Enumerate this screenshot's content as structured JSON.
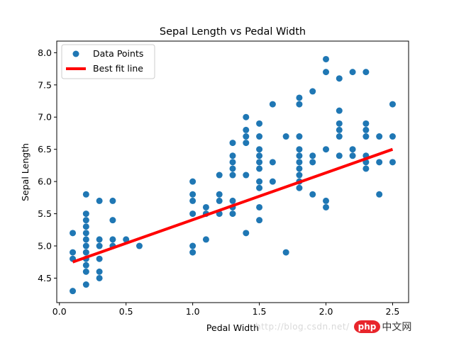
{
  "chart_data": {
    "type": "scatter",
    "title": "Sepal Length vs Pedal Width",
    "xlabel": "Pedal Width",
    "ylabel": "Sepal Length",
    "xlim": [
      -0.02,
      2.62
    ],
    "ylim": [
      4.12,
      8.18
    ],
    "xticks": [
      0.0,
      0.5,
      1.0,
      1.5,
      2.0,
      2.5
    ],
    "xtick_labels": [
      "0.0",
      "0.5",
      "1.0",
      "1.5",
      "2.0",
      "2.5"
    ],
    "yticks": [
      4.5,
      5.0,
      5.5,
      6.0,
      6.5,
      7.0,
      7.5,
      8.0
    ],
    "ytick_labels": [
      "4.5",
      "5.0",
      "5.5",
      "6.0",
      "6.5",
      "7.0",
      "7.5",
      "8.0"
    ],
    "grid": false,
    "legend_position": "top-left",
    "series": [
      {
        "name": "Data Points",
        "kind": "scatter",
        "color": "#1f77b4",
        "points": [
          [
            0.1,
            5.2
          ],
          [
            0.1,
            4.9
          ],
          [
            0.1,
            4.8
          ],
          [
            0.1,
            4.3
          ],
          [
            0.2,
            5.8
          ],
          [
            0.2,
            5.5
          ],
          [
            0.2,
            5.4
          ],
          [
            0.2,
            5.3
          ],
          [
            0.2,
            5.2
          ],
          [
            0.2,
            5.1
          ],
          [
            0.2,
            5.0
          ],
          [
            0.2,
            4.9
          ],
          [
            0.2,
            4.8
          ],
          [
            0.2,
            4.7
          ],
          [
            0.2,
            4.6
          ],
          [
            0.2,
            4.4
          ],
          [
            0.3,
            5.7
          ],
          [
            0.3,
            5.1
          ],
          [
            0.3,
            5.0
          ],
          [
            0.3,
            4.8
          ],
          [
            0.3,
            4.6
          ],
          [
            0.3,
            4.5
          ],
          [
            0.4,
            5.7
          ],
          [
            0.4,
            5.4
          ],
          [
            0.4,
            5.1
          ],
          [
            0.4,
            5.0
          ],
          [
            0.5,
            5.1
          ],
          [
            0.6,
            5.0
          ],
          [
            1.0,
            6.0
          ],
          [
            1.0,
            5.8
          ],
          [
            1.0,
            5.7
          ],
          [
            1.0,
            5.5
          ],
          [
            1.0,
            5.0
          ],
          [
            1.0,
            4.9
          ],
          [
            1.1,
            5.6
          ],
          [
            1.1,
            5.5
          ],
          [
            1.1,
            5.1
          ],
          [
            1.2,
            6.1
          ],
          [
            1.2,
            5.8
          ],
          [
            1.2,
            5.7
          ],
          [
            1.2,
            5.5
          ],
          [
            1.3,
            6.6
          ],
          [
            1.3,
            6.4
          ],
          [
            1.3,
            6.3
          ],
          [
            1.3,
            6.2
          ],
          [
            1.3,
            6.1
          ],
          [
            1.3,
            5.7
          ],
          [
            1.3,
            5.6
          ],
          [
            1.3,
            5.5
          ],
          [
            1.4,
            7.0
          ],
          [
            1.4,
            6.8
          ],
          [
            1.4,
            6.7
          ],
          [
            1.4,
            6.6
          ],
          [
            1.4,
            6.1
          ],
          [
            1.4,
            5.2
          ],
          [
            1.5,
            6.9
          ],
          [
            1.5,
            6.7
          ],
          [
            1.5,
            6.5
          ],
          [
            1.5,
            6.4
          ],
          [
            1.5,
            6.3
          ],
          [
            1.5,
            6.2
          ],
          [
            1.5,
            6.0
          ],
          [
            1.5,
            5.9
          ],
          [
            1.5,
            5.6
          ],
          [
            1.5,
            5.4
          ],
          [
            1.6,
            7.2
          ],
          [
            1.6,
            6.3
          ],
          [
            1.6,
            6.0
          ],
          [
            1.7,
            6.7
          ],
          [
            1.7,
            4.9
          ],
          [
            1.8,
            7.3
          ],
          [
            1.8,
            7.2
          ],
          [
            1.8,
            6.7
          ],
          [
            1.8,
            6.5
          ],
          [
            1.8,
            6.4
          ],
          [
            1.8,
            6.3
          ],
          [
            1.8,
            6.2
          ],
          [
            1.8,
            6.1
          ],
          [
            1.8,
            6.0
          ],
          [
            1.8,
            5.9
          ],
          [
            1.9,
            7.4
          ],
          [
            1.9,
            6.4
          ],
          [
            1.9,
            6.3
          ],
          [
            1.9,
            5.8
          ],
          [
            2.0,
            7.9
          ],
          [
            2.0,
            7.7
          ],
          [
            2.0,
            6.5
          ],
          [
            2.0,
            5.7
          ],
          [
            2.0,
            5.6
          ],
          [
            2.1,
            7.6
          ],
          [
            2.1,
            7.1
          ],
          [
            2.1,
            6.9
          ],
          [
            2.1,
            6.8
          ],
          [
            2.1,
            6.7
          ],
          [
            2.1,
            6.4
          ],
          [
            2.2,
            7.7
          ],
          [
            2.2,
            6.5
          ],
          [
            2.2,
            6.4
          ],
          [
            2.3,
            7.7
          ],
          [
            2.3,
            6.9
          ],
          [
            2.3,
            6.8
          ],
          [
            2.3,
            6.7
          ],
          [
            2.3,
            6.4
          ],
          [
            2.3,
            6.3
          ],
          [
            2.3,
            6.2
          ],
          [
            2.4,
            6.7
          ],
          [
            2.4,
            6.3
          ],
          [
            2.4,
            5.8
          ],
          [
            2.5,
            7.2
          ],
          [
            2.5,
            6.7
          ],
          [
            2.5,
            6.3
          ]
        ]
      },
      {
        "name": "Best fit line",
        "kind": "line",
        "color": "#ff0000",
        "x": [
          0.1,
          2.5
        ],
        "y": [
          4.75,
          6.5
        ]
      }
    ]
  },
  "watermark": {
    "url_text": "http://blog.csdn.net/",
    "logo_word": "php",
    "logo_suffix": "中文网"
  }
}
